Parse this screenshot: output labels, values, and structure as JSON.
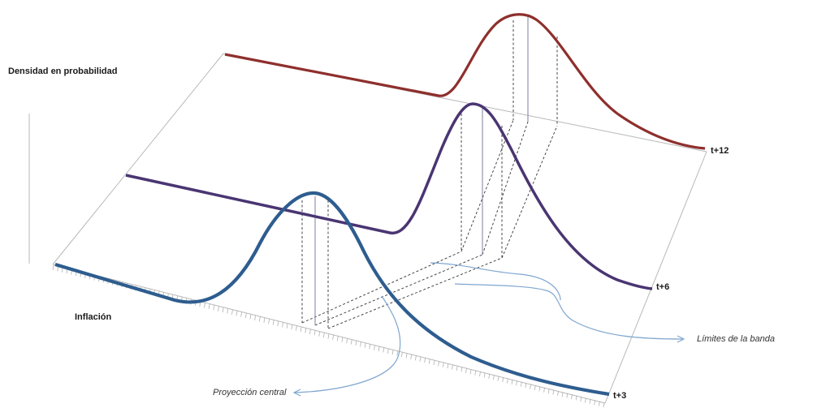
{
  "y_axis_label": "Densidad en probabilidad",
  "x_axis_label": "Inflación",
  "curves": [
    {
      "label": "t+3",
      "color": "#2e5d8f"
    },
    {
      "label": "t+6",
      "color": "#4a3572"
    },
    {
      "label": "t+12",
      "color": "#8e2f2c"
    }
  ],
  "annotations": {
    "band_limits": "Límites de la banda",
    "central_projection": "Proyección central"
  },
  "colors": {
    "frame": "#b8b8b8",
    "dashed_guides": "#333333",
    "callout": "#7fa6cf"
  }
}
